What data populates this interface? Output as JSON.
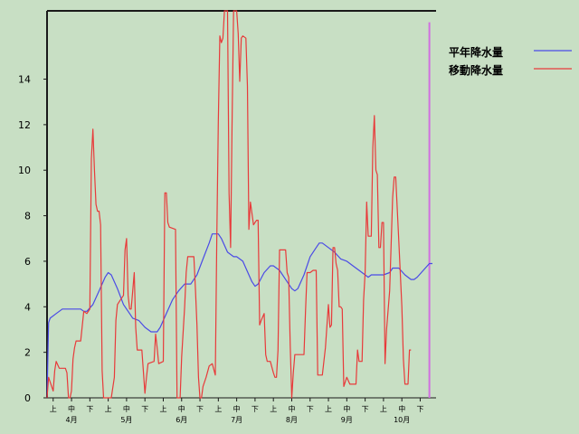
{
  "chart_data": {
    "type": "line",
    "title": "",
    "xlabel": "",
    "ylabel": "",
    "ylim": [
      0,
      17
    ],
    "y_ticks": [
      0,
      2,
      4,
      6,
      8,
      10,
      12,
      14
    ],
    "grid": false,
    "legend_position": "top-right",
    "x_range": [
      0,
      126
    ],
    "sub_tick_labels": [
      "上",
      "中",
      "下",
      "上",
      "中",
      "下",
      "上",
      "中",
      "下",
      "上",
      "中",
      "下",
      "上",
      "中",
      "下",
      "上",
      "中",
      "下",
      "上",
      "中",
      "下"
    ],
    "month_labels": [
      {
        "label": "4月",
        "x": 8
      },
      {
        "label": "5月",
        "x": 26
      },
      {
        "label": "6月",
        "x": 44
      },
      {
        "label": "7月",
        "x": 62
      },
      {
        "label": "8月",
        "x": 80
      },
      {
        "label": "9月",
        "x": 98
      },
      {
        "label": "10月",
        "x": 116
      }
    ],
    "marker_x": 125,
    "series": [
      {
        "name": "平年降水量",
        "color": "#4a4ae6",
        "points": [
          [
            0,
            0
          ],
          [
            0.5,
            3.3
          ],
          [
            1,
            3.5
          ],
          [
            3,
            3.7
          ],
          [
            5,
            3.9
          ],
          [
            8,
            3.9
          ],
          [
            11,
            3.9
          ],
          [
            12,
            3.8
          ],
          [
            13,
            3.8
          ],
          [
            15,
            4.1
          ],
          [
            17,
            4.7
          ],
          [
            19,
            5.3
          ],
          [
            20,
            5.5
          ],
          [
            21,
            5.4
          ],
          [
            23,
            4.8
          ],
          [
            25,
            4.1
          ],
          [
            27,
            3.7
          ],
          [
            28,
            3.5
          ],
          [
            30,
            3.4
          ],
          [
            32,
            3.1
          ],
          [
            34,
            2.9
          ],
          [
            36,
            2.9
          ],
          [
            37,
            3.1
          ],
          [
            39,
            3.7
          ],
          [
            41,
            4.3
          ],
          [
            43,
            4.7
          ],
          [
            45,
            5.0
          ],
          [
            47,
            5.0
          ],
          [
            49,
            5.4
          ],
          [
            51,
            6.1
          ],
          [
            53,
            6.8
          ],
          [
            54,
            7.2
          ],
          [
            56,
            7.2
          ],
          [
            57,
            7.0
          ],
          [
            59,
            6.4
          ],
          [
            61,
            6.2
          ],
          [
            62,
            6.2
          ],
          [
            64,
            6.0
          ],
          [
            66,
            5.4
          ],
          [
            67,
            5.1
          ],
          [
            68,
            4.9
          ],
          [
            69,
            5.0
          ],
          [
            71,
            5.5
          ],
          [
            73,
            5.8
          ],
          [
            74,
            5.8
          ],
          [
            76,
            5.6
          ],
          [
            78,
            5.2
          ],
          [
            80,
            4.8
          ],
          [
            81,
            4.7
          ],
          [
            82,
            4.8
          ],
          [
            84,
            5.4
          ],
          [
            86,
            6.2
          ],
          [
            88,
            6.6
          ],
          [
            89,
            6.8
          ],
          [
            90,
            6.8
          ],
          [
            92,
            6.6
          ],
          [
            94,
            6.4
          ],
          [
            96,
            6.1
          ],
          [
            98,
            6.0
          ],
          [
            100,
            5.8
          ],
          [
            102,
            5.6
          ],
          [
            104,
            5.4
          ],
          [
            105,
            5.3
          ],
          [
            106,
            5.4
          ],
          [
            108,
            5.4
          ],
          [
            110,
            5.4
          ],
          [
            112,
            5.5
          ],
          [
            113,
            5.7
          ],
          [
            115,
            5.7
          ],
          [
            117,
            5.4
          ],
          [
            118,
            5.3
          ],
          [
            119,
            5.2
          ],
          [
            120,
            5.2
          ],
          [
            121,
            5.3
          ],
          [
            123,
            5.6
          ],
          [
            125,
            5.9
          ],
          [
            126,
            5.9
          ]
        ]
      },
      {
        "name": "移動降水量",
        "color": "#e83a3a",
        "points": [
          [
            0,
            0
          ],
          [
            0.5,
            0.9
          ],
          [
            1,
            0.7
          ],
          [
            2,
            0.3
          ],
          [
            2.5,
            1.2
          ],
          [
            3,
            1.6
          ],
          [
            4,
            1.3
          ],
          [
            5,
            1.3
          ],
          [
            6,
            1.3
          ],
          [
            6.5,
            1.1
          ],
          [
            7,
            0
          ],
          [
            7.5,
            0
          ],
          [
            8,
            0.3
          ],
          [
            8.5,
            1.7
          ],
          [
            9,
            2.2
          ],
          [
            9.5,
            2.5
          ],
          [
            11,
            2.5
          ],
          [
            12,
            3.8
          ],
          [
            13,
            3.7
          ],
          [
            14,
            3.9
          ],
          [
            14.5,
            10.5
          ],
          [
            15,
            11.8
          ],
          [
            15.5,
            10.0
          ],
          [
            16,
            8.5
          ],
          [
            16.5,
            8.2
          ],
          [
            17,
            8.2
          ],
          [
            17.5,
            7.6
          ],
          [
            18,
            1.2
          ],
          [
            18.5,
            0
          ],
          [
            21,
            0
          ],
          [
            22,
            0.9
          ],
          [
            22.5,
            3.4
          ],
          [
            23,
            4.1
          ],
          [
            24,
            4.3
          ],
          [
            25,
            4.5
          ],
          [
            25.5,
            6.5
          ],
          [
            26,
            7.0
          ],
          [
            26.5,
            4.5
          ],
          [
            27,
            3.9
          ],
          [
            27.5,
            3.9
          ],
          [
            28,
            4.7
          ],
          [
            28.5,
            5.5
          ],
          [
            29,
            3.1
          ],
          [
            29.5,
            2.1
          ],
          [
            31,
            2.1
          ],
          [
            32,
            0.2
          ],
          [
            32.5,
            0.9
          ],
          [
            33,
            1.5
          ],
          [
            35,
            1.6
          ],
          [
            35.5,
            2.8
          ],
          [
            36,
            2.2
          ],
          [
            36.5,
            1.5
          ],
          [
            38,
            1.6
          ],
          [
            38.5,
            9.0
          ],
          [
            39,
            9.0
          ],
          [
            39.5,
            7.7
          ],
          [
            40,
            7.5
          ],
          [
            42,
            7.4
          ],
          [
            42.5,
            0
          ],
          [
            43.5,
            0
          ],
          [
            44,
            1.8
          ],
          [
            45,
            4.0
          ],
          [
            45.5,
            5.5
          ],
          [
            46,
            6.2
          ],
          [
            48,
            6.2
          ],
          [
            48.5,
            4.8
          ],
          [
            49,
            3.2
          ],
          [
            49.5,
            0.9
          ],
          [
            50,
            0
          ],
          [
            50.5,
            0
          ],
          [
            51,
            0.5
          ],
          [
            52,
            0.9
          ],
          [
            53,
            1.4
          ],
          [
            54,
            1.5
          ],
          [
            55,
            1.0
          ],
          [
            55.5,
            6.9
          ],
          [
            56,
            12.1
          ],
          [
            56.5,
            15.9
          ],
          [
            57,
            15.6
          ],
          [
            57.5,
            15.8
          ],
          [
            58,
            17
          ],
          [
            59,
            17
          ],
          [
            59.5,
            9.0
          ],
          [
            60,
            6.6
          ],
          [
            60.5,
            12.0
          ],
          [
            61,
            17
          ],
          [
            62,
            17
          ],
          [
            62.5,
            16.0
          ],
          [
            63,
            13.9
          ],
          [
            63.5,
            15.8
          ],
          [
            64,
            15.9
          ],
          [
            65,
            15.8
          ],
          [
            65.5,
            13.7
          ],
          [
            66,
            7.4
          ],
          [
            66.5,
            8.6
          ],
          [
            67,
            8.1
          ],
          [
            67.5,
            7.6
          ],
          [
            68,
            7.7
          ],
          [
            68.5,
            7.8
          ],
          [
            69,
            7.8
          ],
          [
            69.5,
            3.2
          ],
          [
            70,
            3.4
          ],
          [
            71,
            3.7
          ],
          [
            71.5,
            1.9
          ],
          [
            72,
            1.6
          ],
          [
            73,
            1.6
          ],
          [
            74,
            1.1
          ],
          [
            74.5,
            0.9
          ],
          [
            75,
            0.9
          ],
          [
            75.5,
            2.1
          ],
          [
            76,
            6.5
          ],
          [
            78,
            6.5
          ],
          [
            78.5,
            5.5
          ],
          [
            79,
            5.3
          ],
          [
            79.5,
            2.3
          ],
          [
            80,
            0
          ],
          [
            80.5,
            1.1
          ],
          [
            81,
            1.9
          ],
          [
            84,
            1.9
          ],
          [
            84.5,
            3.8
          ],
          [
            85,
            5.5
          ],
          [
            86,
            5.5
          ],
          [
            87,
            5.6
          ],
          [
            88,
            5.6
          ],
          [
            88.5,
            1.0
          ],
          [
            90,
            1.0
          ],
          [
            91,
            2.2
          ],
          [
            92,
            4.1
          ],
          [
            92.5,
            3.1
          ],
          [
            93,
            3.2
          ],
          [
            93.5,
            6.6
          ],
          [
            94,
            6.6
          ],
          [
            94.5,
            5.9
          ],
          [
            95,
            5.6
          ],
          [
            95.5,
            4.0
          ],
          [
            96,
            4.0
          ],
          [
            96.5,
            3.9
          ],
          [
            97,
            0.5
          ],
          [
            98,
            0.9
          ],
          [
            99,
            0.6
          ],
          [
            101,
            0.6
          ],
          [
            101.5,
            2.1
          ],
          [
            102,
            1.6
          ],
          [
            103,
            1.6
          ],
          [
            103.5,
            4.3
          ],
          [
            104,
            5.5
          ],
          [
            104.5,
            8.6
          ],
          [
            105,
            7.1
          ],
          [
            106,
            7.1
          ],
          [
            106.5,
            11.0
          ],
          [
            107,
            12.4
          ],
          [
            107.5,
            10.0
          ],
          [
            108,
            9.8
          ],
          [
            108.5,
            6.6
          ],
          [
            109,
            6.6
          ],
          [
            109.5,
            7.7
          ],
          [
            110,
            7.7
          ],
          [
            110.5,
            1.5
          ],
          [
            111,
            3.0
          ],
          [
            112,
            4.7
          ],
          [
            113,
            8.8
          ],
          [
            113.5,
            9.7
          ],
          [
            114,
            9.7
          ],
          [
            115,
            6.9
          ],
          [
            116,
            4.0
          ],
          [
            116.5,
            1.7
          ],
          [
            117,
            0.6
          ],
          [
            118,
            0.6
          ],
          [
            118.5,
            2.1
          ],
          [
            119,
            2.1
          ]
        ]
      }
    ]
  }
}
